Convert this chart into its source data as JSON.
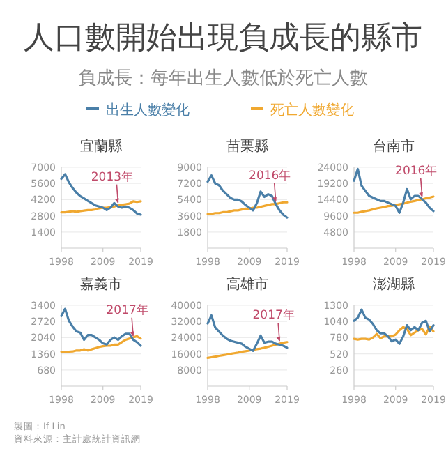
{
  "chart_data": [
    {
      "type": "other",
      "title": "人口數開始出現負成長的縣市",
      "subtitle": "負成長：每年出生人數低於死亡人數",
      "annotations": [
        "製圖：If Lin",
        "資料來源：主計處統計資訊網"
      ]
    },
    {
      "type": "line",
      "title": "宜蘭縣",
      "legend": "top",
      "grid": "y",
      "xlim": [
        1998,
        2019
      ],
      "xticks": [
        1998,
        2009,
        2019
      ],
      "ylim": [
        0,
        7000
      ],
      "yticks": [
        1400,
        2800,
        4200,
        5600,
        7000
      ],
      "x": [
        1998,
        1999,
        2000,
        2001,
        2002,
        2003,
        2004,
        2005,
        2006,
        2007,
        2008,
        2009,
        2010,
        2011,
        2012,
        2013,
        2014,
        2015,
        2016,
        2017,
        2018,
        2019
      ],
      "series": [
        {
          "name": "出生人數變化",
          "color": "#4a7fa8",
          "values": [
            6000,
            6400,
            5700,
            5200,
            4800,
            4500,
            4300,
            4100,
            3900,
            3700,
            3600,
            3500,
            3300,
            3500,
            3900,
            3600,
            3500,
            3600,
            3500,
            3300,
            3000,
            2900
          ]
        },
        {
          "name": "死亡人數變化",
          "color": "#f0a830",
          "values": [
            3100,
            3100,
            3150,
            3200,
            3150,
            3200,
            3250,
            3300,
            3300,
            3350,
            3450,
            3500,
            3500,
            3550,
            3600,
            3700,
            3750,
            3800,
            3850,
            4050,
            4000,
            4050
          ]
        }
      ],
      "annotations": [
        {
          "text": "2013年",
          "x": 2013,
          "y": 3700
        }
      ]
    },
    {
      "type": "line",
      "title": "苗栗縣",
      "grid": "y",
      "xlim": [
        1998,
        2019
      ],
      "xticks": [
        1998,
        2009,
        2019
      ],
      "ylim": [
        0,
        9000
      ],
      "yticks": [
        1800,
        3600,
        5400,
        7200,
        9000
      ],
      "x": [
        1998,
        1999,
        2000,
        2001,
        2002,
        2003,
        2004,
        2005,
        2006,
        2007,
        2008,
        2009,
        2010,
        2011,
        2012,
        2013,
        2014,
        2015,
        2016,
        2017,
        2018,
        2019
      ],
      "series": [
        {
          "color": "#4a7fa8",
          "values": [
            7400,
            8100,
            7200,
            7000,
            6400,
            6000,
            5600,
            5400,
            5400,
            5200,
            4800,
            4500,
            4200,
            5000,
            6300,
            5700,
            6000,
            5800,
            4900,
            4200,
            3700,
            3400
          ]
        },
        {
          "color": "#f0a830",
          "values": [
            3800,
            3800,
            3900,
            3900,
            4000,
            4000,
            4100,
            4200,
            4200,
            4300,
            4400,
            4400,
            4500,
            4500,
            4600,
            4700,
            4800,
            4900,
            4900,
            5000,
            5100,
            5100
          ]
        }
      ],
      "annotations": [
        {
          "text": "2016年",
          "x": 2016,
          "y": 4900
        }
      ]
    },
    {
      "type": "line",
      "title": "台南市",
      "grid": "y",
      "xlim": [
        1998,
        2019
      ],
      "xticks": [
        1998,
        2009,
        2019
      ],
      "ylim": [
        0,
        24000
      ],
      "yticks": [
        4800,
        9600,
        14400,
        19200,
        24000
      ],
      "x": [
        1998,
        1999,
        2000,
        2001,
        2002,
        2003,
        2004,
        2005,
        2006,
        2007,
        2008,
        2009,
        2010,
        2011,
        2012,
        2013,
        2014,
        2015,
        2016,
        2017,
        2018,
        2019
      ],
      "series": [
        {
          "color": "#4a7fa8",
          "values": [
            20000,
            23500,
            18500,
            17000,
            15500,
            15000,
            14500,
            14000,
            14000,
            13500,
            13000,
            12500,
            10500,
            13500,
            17500,
            14500,
            15500,
            15500,
            14500,
            13500,
            12000,
            11000
          ]
        },
        {
          "color": "#f0a830",
          "values": [
            10500,
            10500,
            10800,
            11000,
            11200,
            11500,
            11800,
            12000,
            12200,
            12500,
            12600,
            12800,
            13000,
            13200,
            13500,
            13800,
            14000,
            14300,
            14500,
            14800,
            15000,
            15300
          ]
        }
      ],
      "annotations": [
        {
          "text": "2016年",
          "x": 2016,
          "y": 14500
        }
      ]
    },
    {
      "type": "line",
      "title": "嘉義市",
      "grid": "y",
      "xlim": [
        1998,
        2019
      ],
      "xticks": [
        1998,
        2009,
        2019
      ],
      "ylim": [
        0,
        3400
      ],
      "yticks": [
        680,
        1360,
        2040,
        2720,
        3400
      ],
      "x": [
        1998,
        1999,
        2000,
        2001,
        2002,
        2003,
        2004,
        2005,
        2006,
        2007,
        2008,
        2009,
        2010,
        2011,
        2012,
        2013,
        2014,
        2015,
        2016,
        2017,
        2018,
        2019
      ],
      "series": [
        {
          "color": "#4a7fa8",
          "values": [
            2950,
            3250,
            2750,
            2500,
            2300,
            2250,
            1950,
            2150,
            2150,
            2050,
            1950,
            1800,
            1750,
            1950,
            2050,
            1950,
            2100,
            2200,
            2200,
            1950,
            1850,
            1700
          ]
        },
        {
          "color": "#f0a830",
          "values": [
            1450,
            1450,
            1450,
            1460,
            1500,
            1500,
            1550,
            1500,
            1550,
            1600,
            1650,
            1680,
            1700,
            1700,
            1750,
            1750,
            1850,
            1950,
            2000,
            2050,
            2100,
            2000
          ]
        }
      ],
      "annotations": [
        {
          "text": "2017年",
          "x": 2017,
          "y": 2000
        }
      ]
    },
    {
      "type": "line",
      "title": "高雄市",
      "grid": "y",
      "xlim": [
        1998,
        2019
      ],
      "xticks": [
        1998,
        2009,
        2019
      ],
      "ylim": [
        0,
        40000
      ],
      "yticks": [
        8000,
        16000,
        24000,
        32000,
        40000
      ],
      "x": [
        1998,
        1999,
        2000,
        2001,
        2002,
        2003,
        2004,
        2005,
        2006,
        2007,
        2008,
        2009,
        2010,
        2011,
        2012,
        2013,
        2014,
        2015,
        2016,
        2017,
        2018,
        2019
      ],
      "series": [
        {
          "color": "#4a7fa8",
          "values": [
            31000,
            35000,
            29000,
            27000,
            25000,
            23500,
            22500,
            22000,
            21500,
            21000,
            19500,
            18500,
            17500,
            21000,
            25000,
            21500,
            22000,
            22000,
            21000,
            20500,
            20000,
            19000
          ]
        },
        {
          "color": "#f0a830",
          "values": [
            14000,
            14300,
            14600,
            15000,
            15300,
            15600,
            16000,
            16300,
            16600,
            17000,
            17300,
            17600,
            18000,
            18300,
            18600,
            19000,
            19500,
            20000,
            20500,
            21000,
            21500,
            21800
          ]
        }
      ],
      "annotations": [
        {
          "text": "2017年",
          "x": 2017,
          "y": 21000
        }
      ]
    },
    {
      "type": "line",
      "title": "澎湖縣",
      "grid": "y",
      "xlim": [
        1998,
        2019
      ],
      "xticks": [
        1998,
        2009,
        2019
      ],
      "ylim": [
        0,
        1300
      ],
      "yticks": [
        260,
        520,
        780,
        1040,
        1300
      ],
      "x": [
        1998,
        1999,
        2000,
        2001,
        2002,
        2003,
        2004,
        2005,
        2006,
        2007,
        2008,
        2009,
        2010,
        2011,
        2012,
        2013,
        2014,
        2015,
        2016,
        2017,
        2018,
        2019
      ],
      "series": [
        {
          "color": "#4a7fa8",
          "values": [
            1050,
            1100,
            1230,
            1100,
            1070,
            1000,
            900,
            850,
            850,
            800,
            720,
            750,
            680,
            800,
            980,
            900,
            950,
            900,
            1020,
            1050,
            880,
            980
          ]
        },
        {
          "color": "#f0a830",
          "values": [
            760,
            750,
            760,
            760,
            750,
            780,
            840,
            770,
            800,
            800,
            800,
            830,
            900,
            950,
            920,
            820,
            860,
            900,
            920,
            830,
            960,
            880
          ]
        }
      ]
    }
  ]
}
